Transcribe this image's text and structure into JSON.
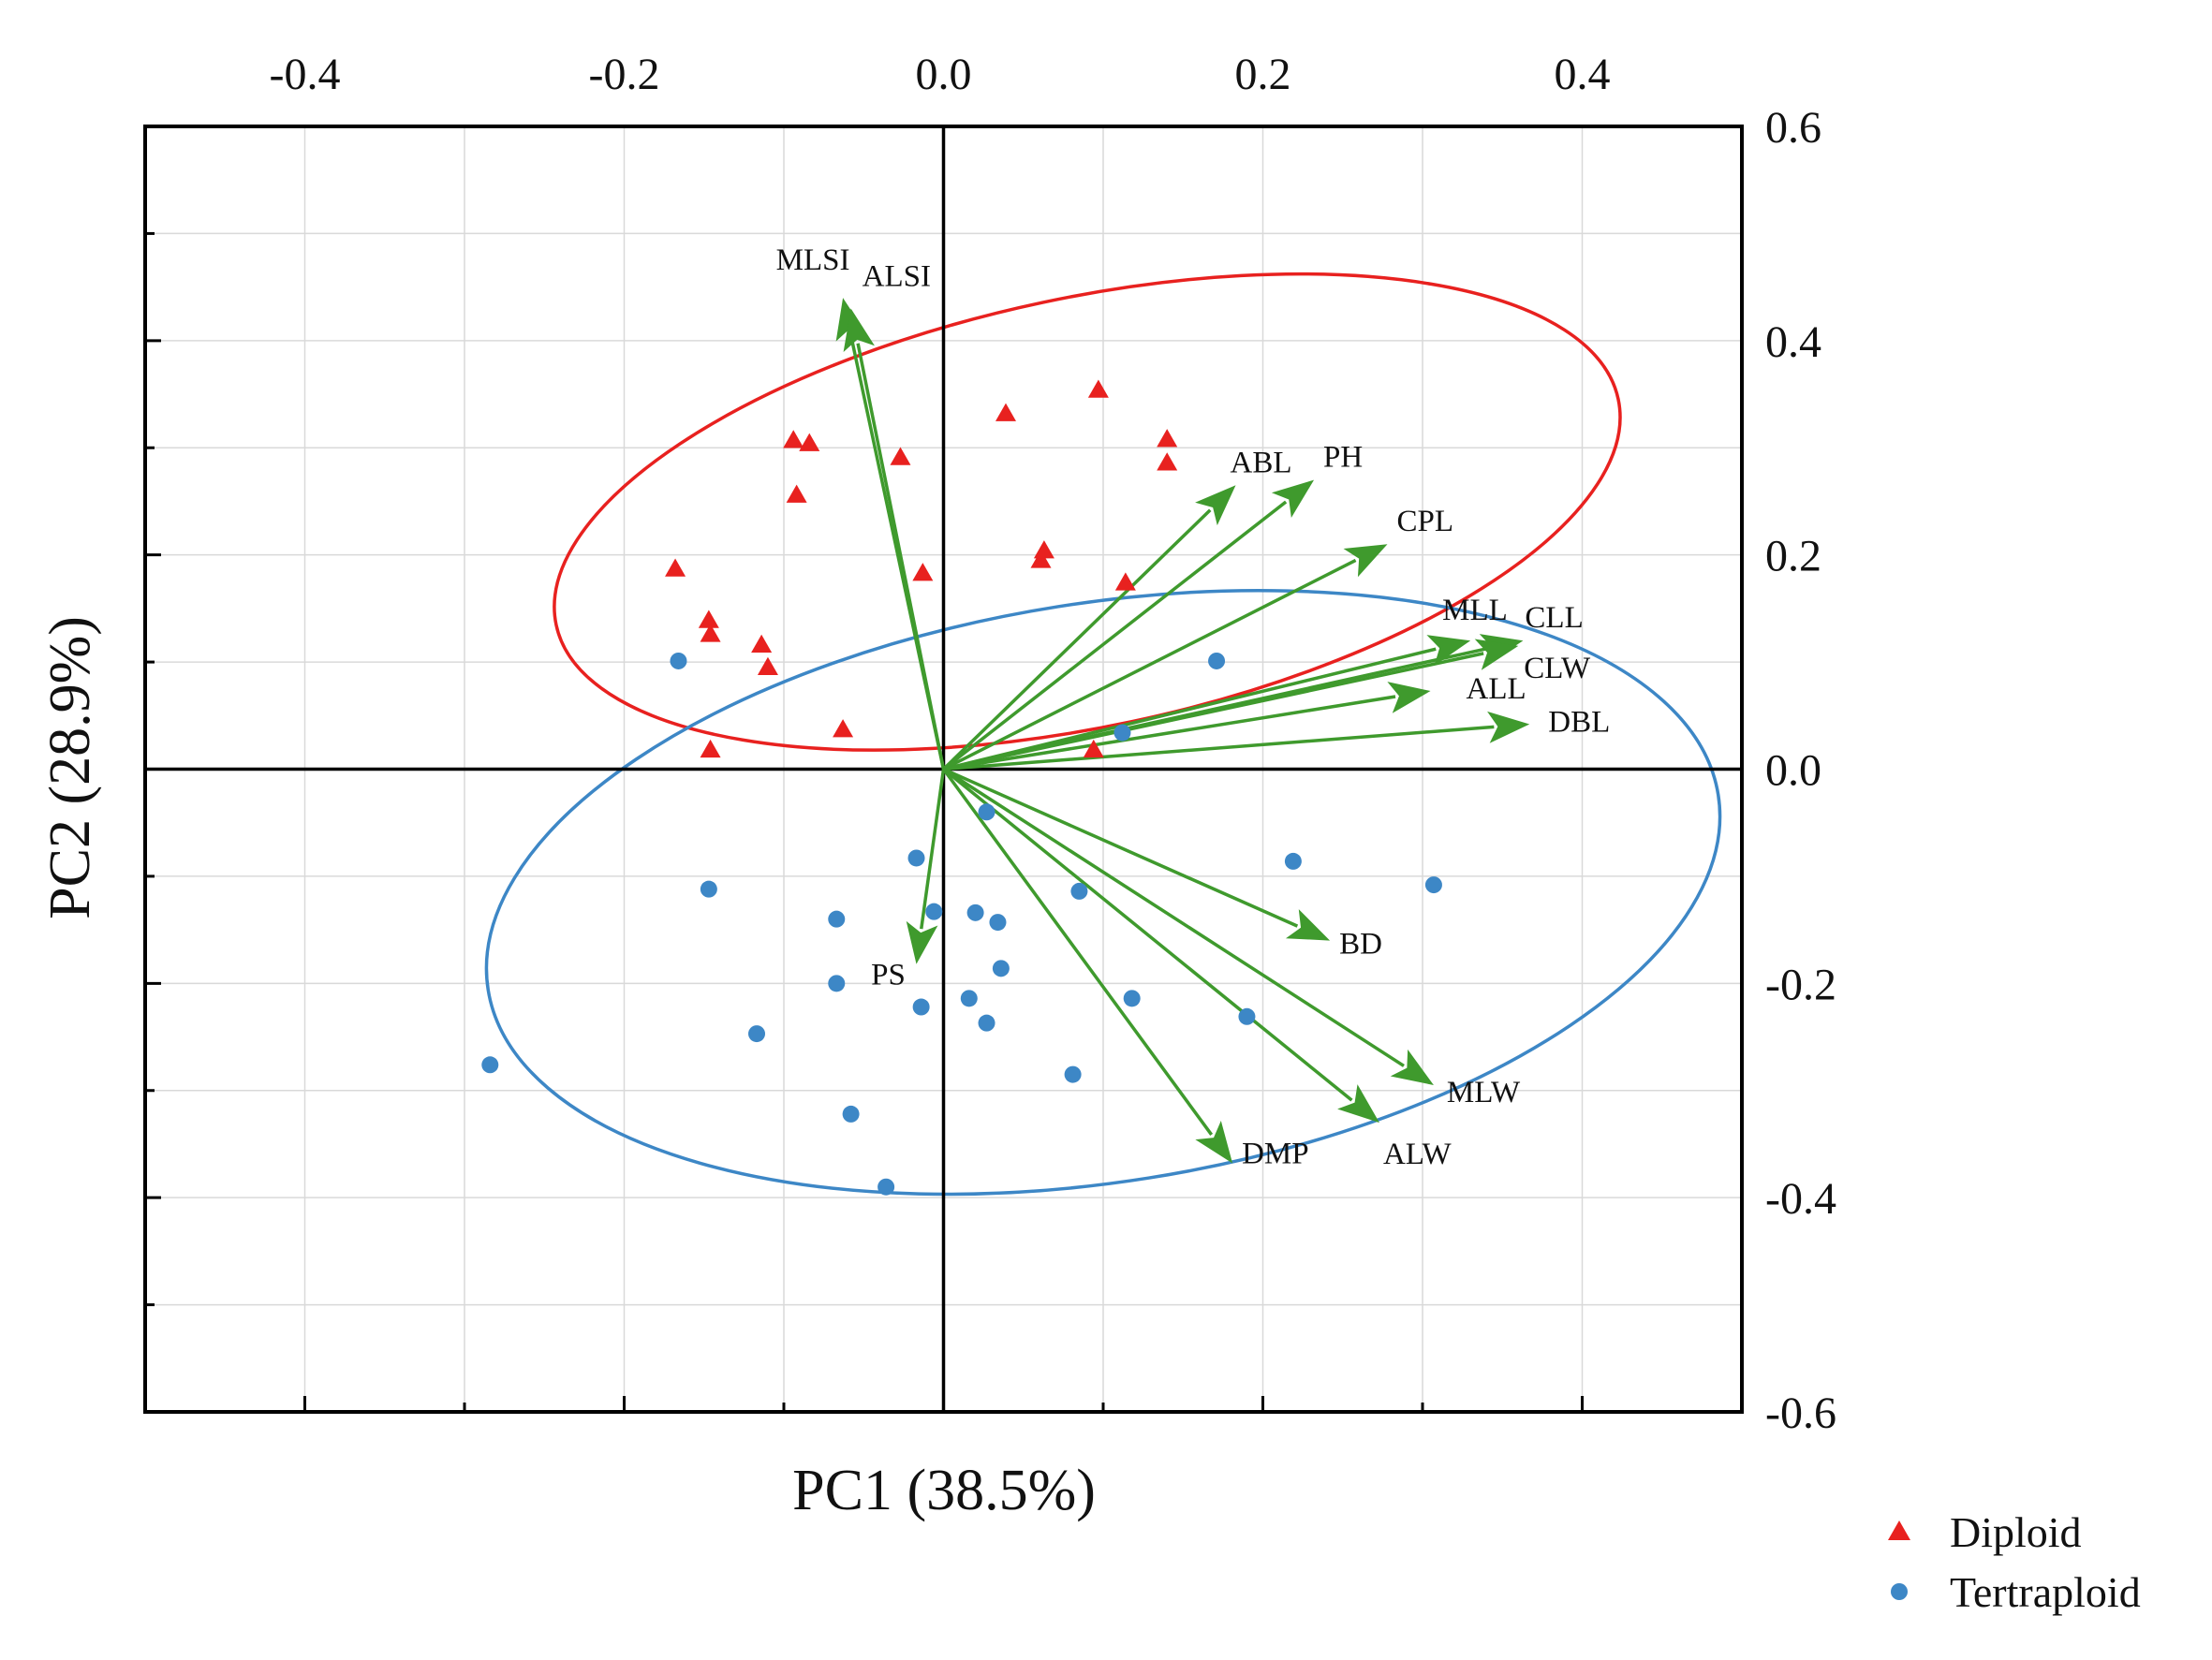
{
  "chart_data": {
    "type": "scatter",
    "subtype": "pca-biplot",
    "xlabel": "PC1 (38.5%)",
    "ylabel": "PC2 (28.9%)",
    "score_axes": {
      "x": {
        "lim": [
          -0.5,
          0.5
        ],
        "ticks": []
      },
      "y": {
        "lim": [
          -0.6,
          0.6
        ],
        "ticks": []
      }
    },
    "loading_axes": {
      "x": {
        "lim": [
          -0.5,
          0.5
        ],
        "ticks": [
          -0.4,
          -0.2,
          0.0,
          0.2,
          0.4
        ],
        "tick_labels": [
          "-0.4",
          "-0.2",
          "0.0",
          "0.2",
          "0.4"
        ],
        "position": "top"
      },
      "y": {
        "lim": [
          -0.6,
          0.6
        ],
        "ticks": [
          -0.6,
          -0.4,
          -0.2,
          0.0,
          0.2,
          0.4,
          0.6
        ],
        "tick_labels": [
          "-0.6",
          "-0.4",
          "-0.2",
          "0.0",
          "0.2",
          "0.4",
          "0.6"
        ],
        "position": "right"
      }
    },
    "grid": true,
    "legend": {
      "position": "bottom-right",
      "entries": [
        "Diploid",
        "Tertraploid"
      ]
    },
    "series": [
      {
        "name": "Diploid",
        "marker": "triangle",
        "color": "#e8211f",
        "points": [
          [
            -0.168,
            0.187
          ],
          [
            -0.147,
            0.139
          ],
          [
            -0.146,
            0.126
          ],
          [
            -0.146,
            0.018
          ],
          [
            -0.114,
            0.116
          ],
          [
            -0.11,
            0.095
          ],
          [
            -0.094,
            0.307
          ],
          [
            -0.092,
            0.256
          ],
          [
            -0.084,
            0.304
          ],
          [
            -0.063,
            0.037
          ],
          [
            -0.027,
            0.291
          ],
          [
            -0.013,
            0.183
          ],
          [
            0.039,
            0.332
          ],
          [
            0.061,
            0.195
          ],
          [
            0.063,
            0.204
          ],
          [
            0.097,
            0.354
          ],
          [
            0.094,
            0.018
          ],
          [
            0.114,
            0.174
          ],
          [
            0.14,
            0.308
          ],
          [
            0.14,
            0.286
          ]
        ]
      },
      {
        "name": "Tertraploid",
        "marker": "circle",
        "color": "#3d87c6",
        "points": [
          [
            -0.284,
            -0.276
          ],
          [
            -0.166,
            0.101
          ],
          [
            -0.147,
            -0.112
          ],
          [
            -0.117,
            -0.247
          ],
          [
            -0.067,
            -0.14
          ],
          [
            -0.067,
            -0.2
          ],
          [
            -0.058,
            -0.322
          ],
          [
            -0.036,
            -0.39
          ],
          [
            -0.017,
            -0.083
          ],
          [
            -0.014,
            -0.222
          ],
          [
            -0.006,
            -0.133
          ],
          [
            0.016,
            -0.214
          ],
          [
            0.02,
            -0.134
          ],
          [
            0.027,
            -0.04
          ],
          [
            0.027,
            -0.237
          ],
          [
            0.034,
            -0.143
          ],
          [
            0.036,
            -0.186
          ],
          [
            0.081,
            -0.285
          ],
          [
            0.085,
            -0.114
          ],
          [
            0.112,
            0.034
          ],
          [
            0.118,
            -0.214
          ],
          [
            0.171,
            0.101
          ],
          [
            0.19,
            -0.231
          ],
          [
            0.219,
            -0.086
          ],
          [
            0.307,
            -0.108
          ]
        ]
      }
    ],
    "ellipses": [
      {
        "name": "Diploid 95% ellipse",
        "color": "#e8211f",
        "center": [
          0.09,
          0.24
        ],
        "semi_axes": [
          0.34,
          0.2
        ],
        "angle_deg": 12
      },
      {
        "name": "Tertraploid 95% ellipse",
        "color": "#3d87c6",
        "center": [
          0.1,
          -0.115
        ],
        "semi_axes": [
          0.39,
          0.27
        ],
        "angle_deg": 9
      }
    ],
    "loadings": {
      "color": "#3f9a2d",
      "vectors": [
        {
          "name": "MLSI",
          "x": -0.063,
          "y": 0.44
        },
        {
          "name": "ALSI",
          "x": -0.058,
          "y": 0.43
        },
        {
          "name": "ABL",
          "x": 0.183,
          "y": 0.265
        },
        {
          "name": "PH",
          "x": 0.232,
          "y": 0.27
        },
        {
          "name": "CPL",
          "x": 0.278,
          "y": 0.21
        },
        {
          "name": "MLL",
          "x": 0.33,
          "y": 0.12
        },
        {
          "name": "CLL",
          "x": 0.363,
          "y": 0.12
        },
        {
          "name": "CLW",
          "x": 0.36,
          "y": 0.115
        },
        {
          "name": "ALL",
          "x": 0.305,
          "y": 0.073
        },
        {
          "name": "DBL",
          "x": 0.367,
          "y": 0.042
        },
        {
          "name": "PS",
          "x": -0.017,
          "y": -0.182
        },
        {
          "name": "BD",
          "x": 0.242,
          "y": -0.16
        },
        {
          "name": "MLW",
          "x": 0.307,
          "y": -0.295
        },
        {
          "name": "ALW",
          "x": 0.273,
          "y": -0.33
        },
        {
          "name": "DMP",
          "x": 0.181,
          "y": -0.368
        }
      ]
    }
  }
}
